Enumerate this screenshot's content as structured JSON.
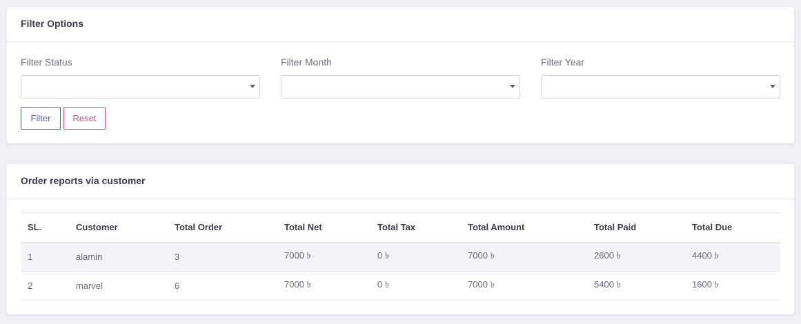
{
  "filter_card": {
    "title": "Filter Options",
    "fields": [
      {
        "label": "Filter Status",
        "value": ""
      },
      {
        "label": "Filter Month",
        "value": ""
      },
      {
        "label": "Filter Year",
        "value": ""
      }
    ],
    "filter_button": "Filter",
    "reset_button": "Reset"
  },
  "report_card": {
    "title": "Order reports via customer",
    "columns": [
      "SL.",
      "Customer",
      "Total Order",
      "Total Net",
      "Total Tax",
      "Total Amount",
      "Total Paid",
      "Total Due"
    ],
    "rows": [
      [
        "1",
        "alamin",
        "3",
        "7000 ৳",
        "0 ৳",
        "7000 ৳",
        "2600 ৳",
        "4400 ৳"
      ],
      [
        "2",
        "marvel",
        "6",
        "7000 ৳",
        "0 ৳",
        "7000 ৳",
        "5400 ৳",
        "1600 ৳"
      ]
    ]
  },
  "colors": {
    "filter_accent": "#5a5fc8",
    "reset_accent": "#e8457a",
    "background": "#efeff4"
  }
}
